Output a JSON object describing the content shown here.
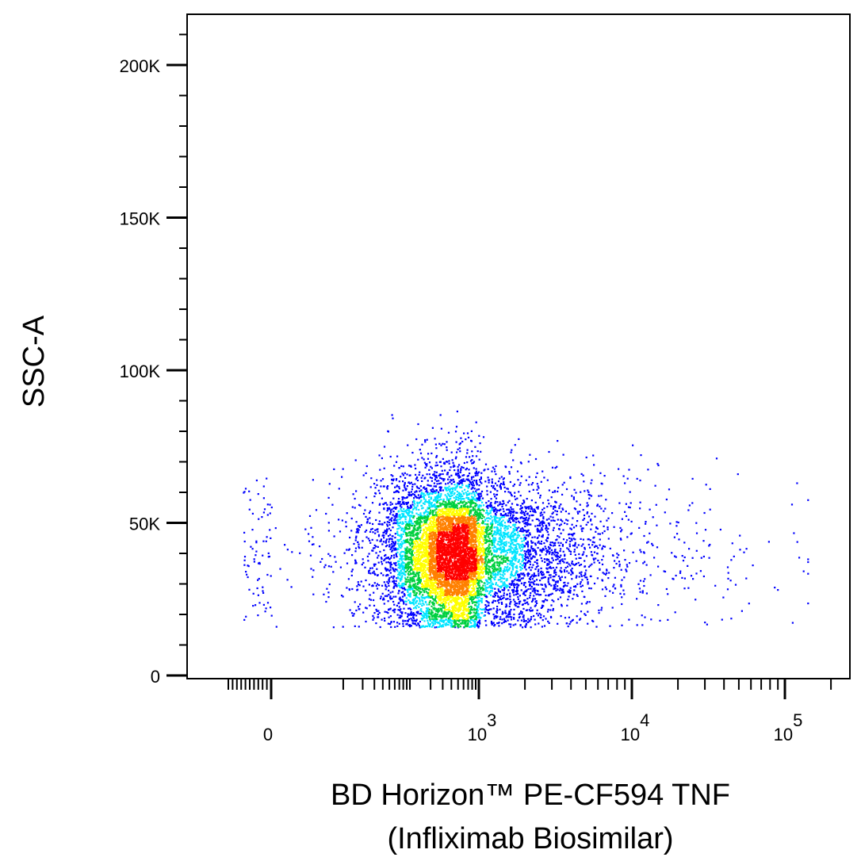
{
  "chart_data": {
    "type": "scatter",
    "subtype": "flow-cytometry-density-dot-plot",
    "xlabel_line1": "BD Horizon™ PE-CF594 TNF",
    "xlabel_line2": "(Infliximab Biosimilar)",
    "ylabel": "SSC-A",
    "x_scale": "biexponential",
    "x_ticks": [
      {
        "label": "0",
        "sup": "",
        "value": 0
      },
      {
        "label": "10",
        "sup": "3",
        "value": 1000
      },
      {
        "label": "10",
        "sup": "4",
        "value": 10000
      },
      {
        "label": "10",
        "sup": "5",
        "value": 100000
      }
    ],
    "y_ticks": [
      {
        "label": "0",
        "value": 0
      },
      {
        "label": "50K",
        "value": 50000
      },
      {
        "label": "100K",
        "value": 100000
      },
      {
        "label": "150K",
        "value": 150000
      },
      {
        "label": "200K",
        "value": 200000
      }
    ],
    "ylim": [
      0,
      217000
    ],
    "x_population": {
      "center": 500,
      "spread_log10": 0.55,
      "range": [
        -60,
        140000
      ]
    },
    "y_population": {
      "center": 40000,
      "range": [
        16000,
        88000
      ]
    },
    "event_count_shown": 9000,
    "density_colors": [
      "#0000ff",
      "#00e5ff",
      "#00d040",
      "#ffff00",
      "#ff8000",
      "#ff0000"
    ],
    "grid": false,
    "legend": "none"
  }
}
